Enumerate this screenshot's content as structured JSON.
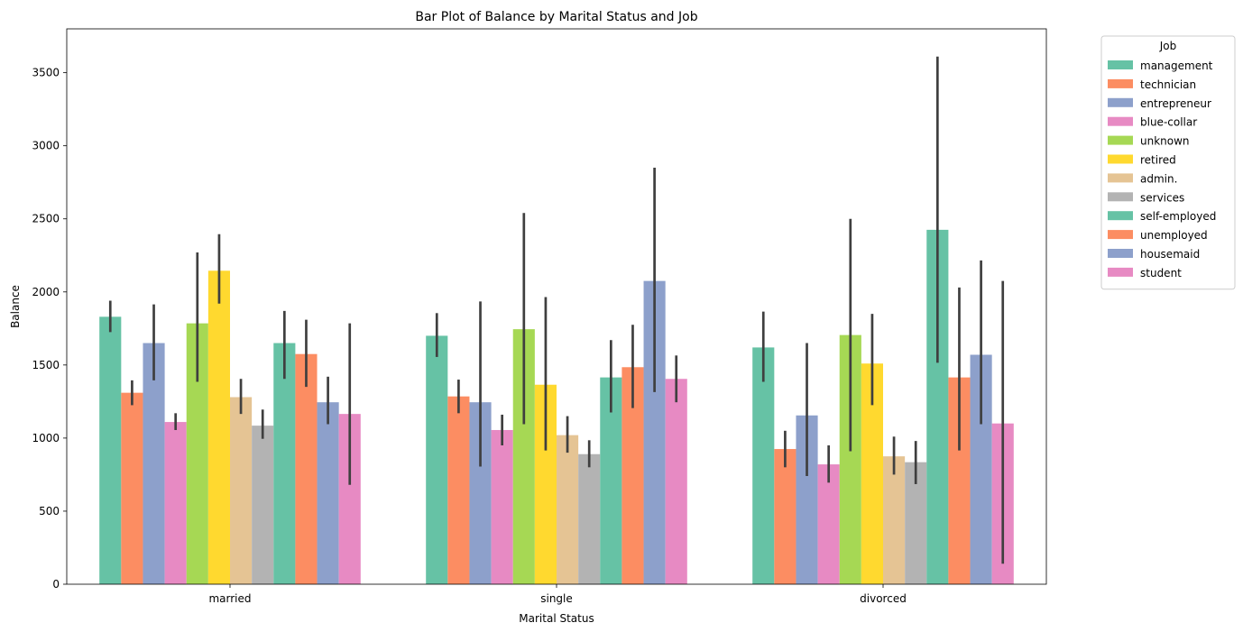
{
  "chart_data": {
    "type": "bar",
    "title": "Bar Plot of Balance by Marital Status and Job",
    "xlabel": "Marital Status",
    "ylabel": "Balance",
    "ylim": [
      0,
      3800
    ],
    "yticks": [
      0,
      500,
      1000,
      1500,
      2000,
      2500,
      3000,
      3500
    ],
    "categories": [
      "married",
      "single",
      "divorced"
    ],
    "legend": {
      "title": "Job",
      "placement": "outside-right-top"
    },
    "series": [
      {
        "name": "management",
        "color": "#66c2a5",
        "values": [
          1830,
          1700,
          1620
        ],
        "ci": [
          [
            1725,
            1940
          ],
          [
            1555,
            1855
          ],
          [
            1385,
            1865
          ]
        ]
      },
      {
        "name": "technician",
        "color": "#fc8d62",
        "values": [
          1310,
          1285,
          925
        ],
        "ci": [
          [
            1225,
            1395
          ],
          [
            1170,
            1400
          ],
          [
            800,
            1050
          ]
        ]
      },
      {
        "name": "entrepreneur",
        "color": "#8da0cb",
        "values": [
          1650,
          1245,
          1155
        ],
        "ci": [
          [
            1395,
            1915
          ],
          [
            805,
            1935
          ],
          [
            740,
            1650
          ]
        ]
      },
      {
        "name": "blue-collar",
        "color": "#e78ac3",
        "values": [
          1110,
          1055,
          820
        ],
        "ci": [
          [
            1055,
            1170
          ],
          [
            950,
            1160
          ],
          [
            695,
            950
          ]
        ]
      },
      {
        "name": "unknown",
        "color": "#a6d854",
        "values": [
          1785,
          1745,
          1705
        ],
        "ci": [
          [
            1385,
            2270
          ],
          [
            1095,
            2540
          ],
          [
            910,
            2500
          ]
        ]
      },
      {
        "name": "retired",
        "color": "#ffd92f",
        "values": [
          2145,
          1365,
          1510
        ],
        "ci": [
          [
            1920,
            2395
          ],
          [
            915,
            1965
          ],
          [
            1225,
            1850
          ]
        ]
      },
      {
        "name": "admin.",
        "color": "#e5c494",
        "values": [
          1280,
          1020,
          875
        ],
        "ci": [
          [
            1165,
            1405
          ],
          [
            900,
            1150
          ],
          [
            750,
            1010
          ]
        ]
      },
      {
        "name": "services",
        "color": "#b3b3b3",
        "values": [
          1085,
          890,
          835
        ],
        "ci": [
          [
            995,
            1195
          ],
          [
            800,
            985
          ],
          [
            685,
            980
          ]
        ]
      },
      {
        "name": "self-employed",
        "color": "#66c2a5",
        "values": [
          1650,
          1415,
          2425
        ],
        "ci": [
          [
            1405,
            1870
          ],
          [
            1175,
            1670
          ],
          [
            1515,
            3610
          ]
        ]
      },
      {
        "name": "unemployed",
        "color": "#fc8d62",
        "values": [
          1575,
          1485,
          1415
        ],
        "ci": [
          [
            1350,
            1810
          ],
          [
            1205,
            1775
          ],
          [
            915,
            2030
          ]
        ]
      },
      {
        "name": "housemaid",
        "color": "#8da0cb",
        "values": [
          1245,
          2075,
          1570
        ],
        "ci": [
          [
            1095,
            1420
          ],
          [
            1315,
            2850
          ],
          [
            1095,
            2215
          ]
        ]
      },
      {
        "name": "student",
        "color": "#e78ac3",
        "values": [
          1165,
          1405,
          1100
        ],
        "ci": [
          [
            680,
            1785
          ],
          [
            1245,
            1565
          ],
          [
            140,
            2075
          ]
        ]
      }
    ]
  }
}
